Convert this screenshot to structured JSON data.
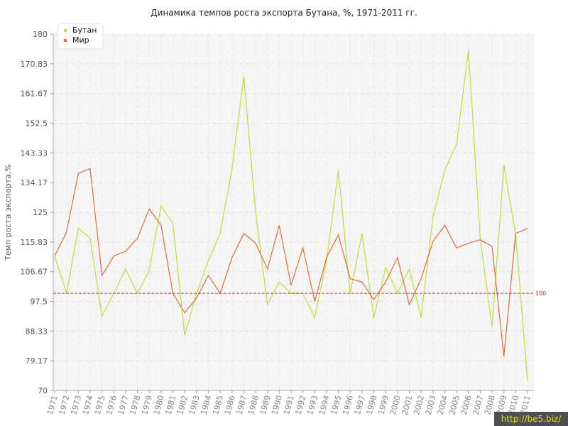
{
  "chart_data": {
    "type": "line",
    "title": "Динамика темпов роста экспорта Бутана, %, 1971-2011 гг.",
    "ylabel": "Темп роста экспорта,%",
    "xlabel": "",
    "ylim": [
      70,
      180
    ],
    "yticks": [
      "70",
      "79.17",
      "88.33",
      "97.5",
      "106.67",
      "115.83",
      "125",
      "134.17",
      "143.33",
      "152.5",
      "161.67",
      "170.83",
      "180"
    ],
    "categories": [
      "1971",
      "1972",
      "1973",
      "1974",
      "1975",
      "1976",
      "1977",
      "1978",
      "1979",
      "1980",
      "1981",
      "1982",
      "1983",
      "1984",
      "1985",
      "1986",
      "1987",
      "1988",
      "1989",
      "1990",
      "1991",
      "1992",
      "1993",
      "1994",
      "1995",
      "1996",
      "1997",
      "1998",
      "1999",
      "2000",
      "2001",
      "2002",
      "2003",
      "2004",
      "2005",
      "2006",
      "2007",
      "2008",
      "2009",
      "2010",
      "2011"
    ],
    "series": [
      {
        "name": "Бутан",
        "color": "#bedd3a",
        "values": [
          111.5,
          100,
          120,
          117,
          93,
          100,
          107.5,
          100,
          107,
          127,
          121.5,
          87,
          100,
          110,
          118.5,
          138.5,
          167,
          125,
          96.5,
          103.5,
          100,
          100,
          92.5,
          110,
          138,
          100,
          118.5,
          92.5,
          108,
          100,
          107.5,
          92.5,
          123.5,
          138,
          146,
          175,
          117,
          89.5,
          139.5,
          118,
          73
        ]
      },
      {
        "name": "Мир",
        "color": "#e06a3a",
        "values": [
          111.5,
          119,
          137,
          138.5,
          105.5,
          111.5,
          113,
          117,
          126,
          121,
          100,
          94,
          98.5,
          105.5,
          100,
          111,
          118.5,
          115.5,
          107.5,
          121,
          102.5,
          114,
          97.5,
          111,
          118,
          104.5,
          103.5,
          98,
          103.5,
          111,
          96.5,
          104.5,
          116,
          121,
          114,
          115.5,
          116.5,
          114.5,
          80.5,
          118.5,
          120
        ]
      }
    ],
    "reference_line": {
      "value": 100,
      "label": "100",
      "color": "#a04040"
    },
    "legend": "top-left",
    "grid": true
  },
  "watermark": "http://be5.biz/"
}
